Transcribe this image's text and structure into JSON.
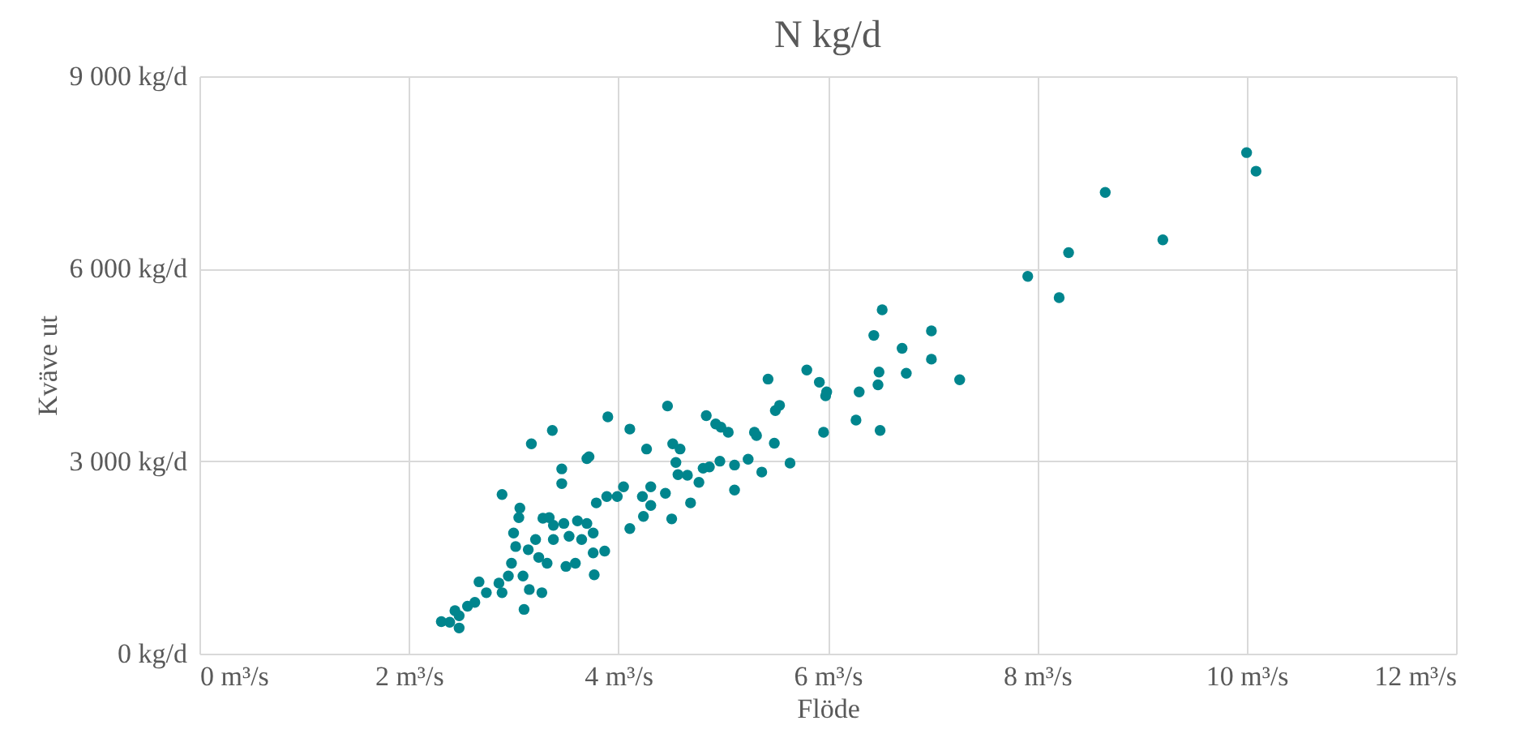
{
  "chart_data": {
    "type": "scatter",
    "title": "N kg/d",
    "xlabel": "Flöde",
    "ylabel": "Kväve ut",
    "xlim": [
      0,
      12
    ],
    "xticks": [
      {
        "value": 0,
        "label": "0 m³/s"
      },
      {
        "value": 2,
        "label": "2 m³/s"
      },
      {
        "value": 4,
        "label": "4 m³/s"
      },
      {
        "value": 6,
        "label": "6 m³/s"
      },
      {
        "value": 8,
        "label": "8 m³/s"
      },
      {
        "value": 10,
        "label": "10 m³/s"
      },
      {
        "value": 12,
        "label": "12 m³/s"
      }
    ],
    "ylim": [
      0,
      9000
    ],
    "yticks": [
      {
        "value": 0,
        "label": "0 kg/d"
      },
      {
        "value": 3000,
        "label": "3 000 kg/d"
      },
      {
        "value": 6000,
        "label": "6 000 kg/d"
      },
      {
        "value": 9000,
        "label": "9 000 kg/d"
      }
    ],
    "grid": true,
    "marker": "circle",
    "series": [
      {
        "color": "#00858d",
        "x": [
          7.91,
          8.21,
          8.3,
          8.65,
          9.2,
          10.0,
          10.09,
          6.52,
          6.44,
          6.99,
          6.71,
          6.99,
          6.75,
          7.26,
          6.49,
          6.48,
          6.3,
          6.5,
          6.27,
          5.96,
          5.98,
          5.99,
          5.92,
          5.8,
          5.43,
          5.54,
          5.5,
          5.64,
          5.49,
          5.37,
          5.32,
          5.3,
          5.24,
          5.11,
          5.11,
          5.05,
          4.98,
          4.93,
          4.84,
          4.97,
          4.87,
          4.81,
          4.77,
          4.69,
          4.47,
          4.59,
          4.52,
          4.55,
          4.57,
          4.66,
          4.45,
          4.51,
          4.11,
          4.27,
          4.31,
          4.23,
          4.05,
          3.99,
          4.24,
          4.11,
          4.31,
          3.9,
          3.37,
          3.17,
          3.7,
          3.72,
          3.46,
          3.46,
          2.89,
          3.06,
          3.05,
          3.28,
          3.34,
          3.48,
          3.61,
          3.7,
          3.79,
          3.89,
          3.0,
          3.02,
          3.21,
          3.38,
          3.53,
          3.65,
          3.76,
          3.87,
          3.76,
          3.59,
          3.5,
          3.32,
          3.24,
          3.14,
          2.98,
          2.95,
          3.09,
          3.15,
          3.27,
          3.77,
          3.1,
          2.89,
          2.86,
          2.74,
          2.67,
          2.63,
          2.56,
          2.48,
          2.44,
          2.39,
          2.31,
          2.48,
          3.38
        ],
        "values": [
          5880,
          5550,
          6250,
          7190,
          6450,
          7810,
          7520,
          5360,
          4960,
          5030,
          4760,
          4590,
          4370,
          4270,
          4390,
          4190,
          4080,
          3480,
          3640,
          3450,
          4020,
          4080,
          4230,
          4420,
          4280,
          3870,
          3790,
          2970,
          3280,
          2830,
          3400,
          3450,
          3030,
          2550,
          2940,
          3450,
          3530,
          3580,
          3710,
          3000,
          2910,
          2890,
          2670,
          2350,
          3860,
          3190,
          3270,
          2980,
          2790,
          2780,
          2500,
          2100,
          3500,
          3190,
          2600,
          2450,
          2600,
          2450,
          2140,
          1950,
          2310,
          3690,
          3480,
          3270,
          3040,
          3070,
          2880,
          2650,
          2480,
          2270,
          2120,
          2110,
          2120,
          2030,
          2070,
          2030,
          2350,
          2450,
          1880,
          1670,
          1780,
          1780,
          1830,
          1780,
          1880,
          1600,
          1570,
          1410,
          1360,
          1410,
          1500,
          1620,
          1410,
          1210,
          1210,
          1000,
          950,
          1230,
          690,
          950,
          1100,
          950,
          1120,
          800,
          740,
          590,
          670,
          490,
          500,
          400,
          2000
        ]
      }
    ]
  }
}
